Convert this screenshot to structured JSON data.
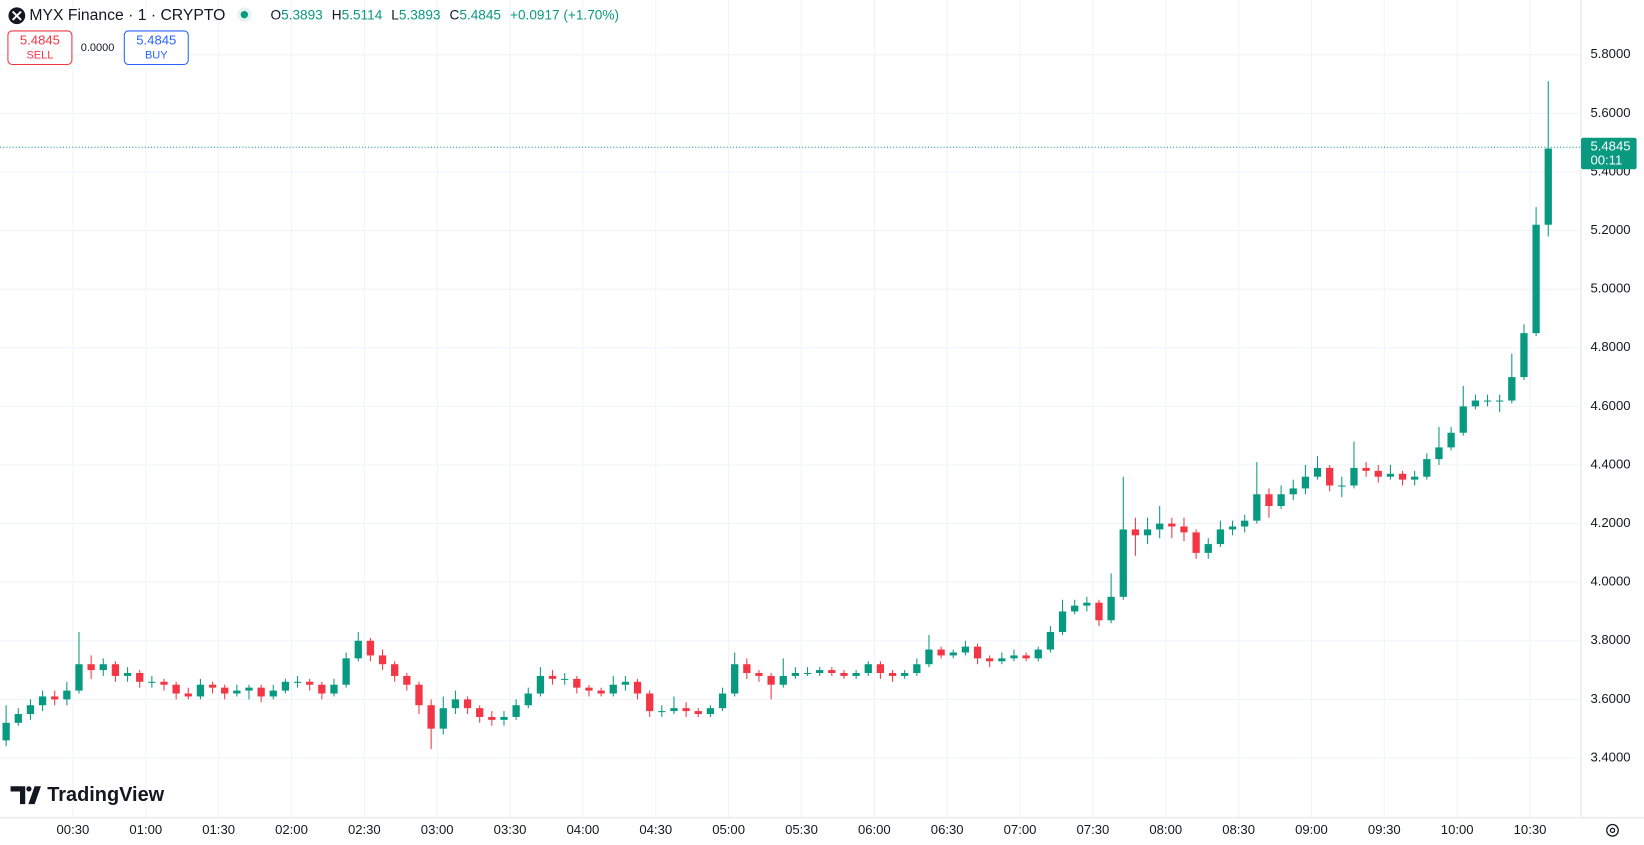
{
  "header": {
    "symbol": "MYX Finance · 1 · CRYPTO",
    "open_label": "O",
    "open": "5.3893",
    "high_label": "H",
    "high": "5.5114",
    "low_label": "L",
    "low": "5.3893",
    "close_label": "C",
    "close": "5.4845",
    "change": "+0.0917 (+1.70%)"
  },
  "trade": {
    "sell_price": "5.4845",
    "sell_label": "SELL",
    "spread": "0.0000",
    "buy_price": "5.4845",
    "buy_label": "BUY"
  },
  "watermark": "TradingView",
  "chart_data": {
    "type": "candlestick",
    "up_color": "#089981",
    "down_color": "#f23645",
    "grid": true,
    "xlim": [
      "00:00",
      "10:51"
    ],
    "xticks": [
      "00:30",
      "01:00",
      "01:30",
      "02:00",
      "02:30",
      "03:00",
      "03:30",
      "04:00",
      "04:30",
      "05:00",
      "05:30",
      "06:00",
      "06:30",
      "07:00",
      "07:30",
      "08:00",
      "08:30",
      "09:00",
      "09:30",
      "10:00",
      "10:30"
    ],
    "ylim": [
      3.196,
      5.987
    ],
    "yticks": [
      {
        "value": 3.4,
        "label": "3.4000"
      },
      {
        "value": 3.6,
        "label": "3.6000"
      },
      {
        "value": 3.8,
        "label": "3.8000"
      },
      {
        "value": 4.0,
        "label": "4.0000"
      },
      {
        "value": 4.2,
        "label": "4.2000"
      },
      {
        "value": 4.4,
        "label": "4.4000"
      },
      {
        "value": 4.6,
        "label": "4.6000"
      },
      {
        "value": 4.8,
        "label": "4.8000"
      },
      {
        "value": 5.0,
        "label": "5.0000"
      },
      {
        "value": 5.2,
        "label": "5.2000"
      },
      {
        "value": 5.4,
        "label": "5.4000"
      },
      {
        "value": 5.6,
        "label": "5.6000"
      },
      {
        "value": 5.8,
        "label": "5.8000"
      }
    ],
    "last_price": {
      "value": 5.4845,
      "label": "5.4845"
    },
    "countdown": "00:11",
    "x": [
      "00:00",
      "00:05",
      "00:10",
      "00:15",
      "00:20",
      "00:25",
      "00:30",
      "00:35",
      "00:40",
      "00:45",
      "00:50",
      "00:55",
      "01:00",
      "01:05",
      "01:10",
      "01:15",
      "01:20",
      "01:25",
      "01:30",
      "01:35",
      "01:40",
      "01:45",
      "01:50",
      "01:55",
      "02:00",
      "02:05",
      "02:10",
      "02:15",
      "02:20",
      "02:25",
      "02:30",
      "02:35",
      "02:40",
      "02:45",
      "02:50",
      "02:55",
      "03:00",
      "03:05",
      "03:10",
      "03:15",
      "03:20",
      "03:25",
      "03:30",
      "03:35",
      "03:40",
      "03:45",
      "03:50",
      "03:55",
      "04:00",
      "04:05",
      "04:10",
      "04:15",
      "04:20",
      "04:25",
      "04:30",
      "04:35",
      "04:40",
      "04:45",
      "04:50",
      "04:55",
      "05:00",
      "05:05",
      "05:10",
      "05:15",
      "05:20",
      "05:25",
      "05:30",
      "05:35",
      "05:40",
      "05:45",
      "05:50",
      "05:55",
      "06:00",
      "06:05",
      "06:10",
      "06:15",
      "06:20",
      "06:25",
      "06:30",
      "06:35",
      "06:40",
      "06:45",
      "06:50",
      "06:55",
      "07:00",
      "07:05",
      "07:10",
      "07:15",
      "07:20",
      "07:25",
      "07:30",
      "07:35",
      "07:40",
      "07:45",
      "07:50",
      "07:55",
      "08:00",
      "08:05",
      "08:10",
      "08:15",
      "08:20",
      "08:25",
      "08:30",
      "08:35",
      "08:40",
      "08:45",
      "08:50",
      "08:55",
      "09:00",
      "09:05",
      "09:10",
      "09:15",
      "09:20",
      "09:25",
      "09:30",
      "09:35",
      "09:40",
      "09:45",
      "09:50",
      "09:55",
      "10:00",
      "10:05",
      "10:10",
      "10:15",
      "10:20",
      "10:25",
      "10:30",
      "10:35"
    ],
    "open": [
      3.46,
      3.52,
      3.55,
      3.58,
      3.61,
      3.6,
      3.63,
      3.72,
      3.7,
      3.72,
      3.68,
      3.69,
      3.66,
      3.66,
      3.65,
      3.62,
      3.61,
      3.65,
      3.64,
      3.62,
      3.63,
      3.64,
      3.61,
      3.63,
      3.66,
      3.66,
      3.65,
      3.62,
      3.65,
      3.74,
      3.8,
      3.75,
      3.72,
      3.68,
      3.65,
      3.58,
      3.5,
      3.57,
      3.6,
      3.57,
      3.54,
      3.53,
      3.54,
      3.58,
      3.62,
      3.68,
      3.67,
      3.67,
      3.64,
      3.63,
      3.62,
      3.65,
      3.66,
      3.62,
      3.56,
      3.56,
      3.57,
      3.56,
      3.55,
      3.57,
      3.62,
      3.72,
      3.69,
      3.68,
      3.65,
      3.68,
      3.69,
      3.69,
      3.7,
      3.69,
      3.68,
      3.69,
      3.72,
      3.69,
      3.68,
      3.69,
      3.72,
      3.77,
      3.75,
      3.76,
      3.78,
      3.74,
      3.73,
      3.74,
      3.75,
      3.74,
      3.77,
      3.83,
      3.9,
      3.92,
      3.93,
      3.87,
      3.95,
      4.18,
      4.16,
      4.18,
      4.2,
      4.19,
      4.17,
      4.1,
      4.13,
      4.18,
      4.19,
      4.21,
      4.3,
      4.26,
      4.3,
      4.32,
      4.36,
      4.39,
      4.33,
      4.33,
      4.39,
      4.38,
      4.36,
      4.37,
      4.35,
      4.36,
      4.42,
      4.46,
      4.51,
      4.6,
      4.62,
      4.62,
      4.62,
      4.7,
      4.85,
      5.22
    ],
    "high": [
      3.58,
      3.57,
      3.6,
      3.63,
      3.63,
      3.66,
      3.83,
      3.75,
      3.74,
      3.73,
      3.71,
      3.7,
      3.68,
      3.67,
      3.66,
      3.64,
      3.67,
      3.66,
      3.65,
      3.65,
      3.65,
      3.65,
      3.65,
      3.67,
      3.68,
      3.67,
      3.66,
      3.67,
      3.76,
      3.83,
      3.81,
      3.77,
      3.73,
      3.69,
      3.66,
      3.6,
      3.61,
      3.63,
      3.61,
      3.58,
      3.56,
      3.56,
      3.6,
      3.64,
      3.71,
      3.7,
      3.69,
      3.68,
      3.65,
      3.64,
      3.68,
      3.68,
      3.67,
      3.63,
      3.58,
      3.61,
      3.59,
      3.57,
      3.58,
      3.64,
      3.76,
      3.74,
      3.7,
      3.69,
      3.74,
      3.71,
      3.71,
      3.71,
      3.71,
      3.7,
      3.7,
      3.73,
      3.73,
      3.7,
      3.7,
      3.74,
      3.82,
      3.78,
      3.77,
      3.8,
      3.79,
      3.75,
      3.76,
      3.77,
      3.76,
      3.78,
      3.85,
      3.94,
      3.94,
      3.95,
      3.94,
      4.03,
      4.36,
      4.22,
      4.22,
      4.26,
      4.22,
      4.22,
      4.18,
      4.15,
      4.21,
      4.21,
      4.23,
      4.41,
      4.32,
      4.33,
      4.35,
      4.4,
      4.43,
      4.4,
      4.36,
      4.48,
      4.41,
      4.4,
      4.4,
      4.38,
      4.38,
      4.44,
      4.53,
      4.53,
      4.67,
      4.64,
      4.64,
      4.64,
      4.78,
      4.88,
      5.28,
      5.71
    ],
    "low": [
      3.44,
      3.51,
      3.53,
      3.56,
      3.58,
      3.58,
      3.62,
      3.67,
      3.68,
      3.66,
      3.66,
      3.64,
      3.64,
      3.63,
      3.6,
      3.6,
      3.6,
      3.62,
      3.6,
      3.61,
      3.6,
      3.59,
      3.6,
      3.62,
      3.64,
      3.63,
      3.6,
      3.61,
      3.64,
      3.73,
      3.73,
      3.7,
      3.66,
      3.63,
      3.55,
      3.43,
      3.48,
      3.55,
      3.55,
      3.52,
      3.51,
      3.51,
      3.53,
      3.57,
      3.61,
      3.65,
      3.65,
      3.62,
      3.61,
      3.61,
      3.61,
      3.63,
      3.6,
      3.54,
      3.54,
      3.55,
      3.54,
      3.54,
      3.54,
      3.56,
      3.61,
      3.67,
      3.66,
      3.6,
      3.64,
      3.67,
      3.68,
      3.68,
      3.68,
      3.67,
      3.67,
      3.68,
      3.67,
      3.66,
      3.67,
      3.68,
      3.71,
      3.74,
      3.74,
      3.75,
      3.72,
      3.71,
      3.72,
      3.73,
      3.73,
      3.73,
      3.76,
      3.82,
      3.89,
      3.9,
      3.85,
      3.86,
      3.94,
      4.09,
      4.13,
      4.15,
      4.15,
      4.14,
      4.08,
      4.08,
      4.12,
      4.16,
      4.17,
      4.2,
      4.22,
      4.25,
      4.28,
      4.3,
      4.35,
      4.31,
      4.29,
      4.32,
      4.36,
      4.34,
      4.35,
      4.33,
      4.33,
      4.35,
      4.4,
      4.45,
      4.5,
      4.59,
      4.6,
      4.58,
      4.61,
      4.69,
      4.84,
      5.18
    ],
    "close": [
      3.52,
      3.55,
      3.58,
      3.61,
      3.6,
      3.63,
      3.72,
      3.7,
      3.72,
      3.68,
      3.69,
      3.66,
      3.66,
      3.65,
      3.62,
      3.61,
      3.65,
      3.64,
      3.62,
      3.63,
      3.64,
      3.61,
      3.63,
      3.66,
      3.66,
      3.65,
      3.62,
      3.65,
      3.74,
      3.8,
      3.75,
      3.72,
      3.68,
      3.65,
      3.58,
      3.5,
      3.57,
      3.6,
      3.57,
      3.54,
      3.53,
      3.54,
      3.58,
      3.62,
      3.68,
      3.67,
      3.67,
      3.64,
      3.63,
      3.62,
      3.65,
      3.66,
      3.62,
      3.56,
      3.56,
      3.57,
      3.56,
      3.55,
      3.57,
      3.62,
      3.72,
      3.69,
      3.68,
      3.65,
      3.68,
      3.69,
      3.69,
      3.7,
      3.69,
      3.68,
      3.69,
      3.72,
      3.69,
      3.68,
      3.69,
      3.72,
      3.77,
      3.75,
      3.76,
      3.78,
      3.74,
      3.73,
      3.74,
      3.75,
      3.74,
      3.77,
      3.83,
      3.9,
      3.92,
      3.93,
      3.87,
      3.95,
      4.18,
      4.16,
      4.18,
      4.2,
      4.19,
      4.17,
      4.1,
      4.13,
      4.18,
      4.19,
      4.21,
      4.3,
      4.26,
      4.3,
      4.32,
      4.36,
      4.39,
      4.33,
      4.33,
      4.39,
      4.38,
      4.36,
      4.37,
      4.35,
      4.36,
      4.42,
      4.46,
      4.51,
      4.6,
      4.62,
      4.62,
      4.62,
      4.7,
      4.85,
      5.22,
      5.48
    ]
  }
}
